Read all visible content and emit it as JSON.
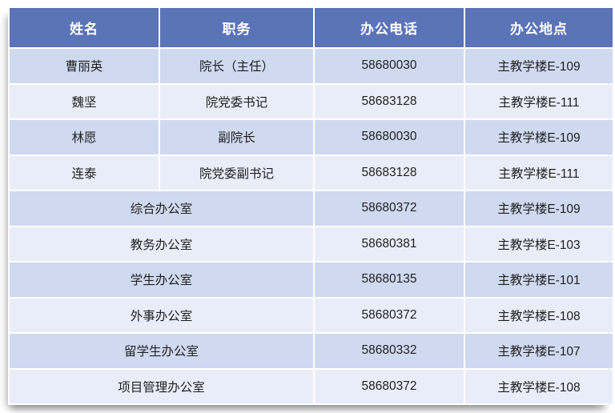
{
  "table": {
    "headers": [
      "姓名",
      "职务",
      "办公电话",
      "办公地点"
    ],
    "rows": [
      {
        "name": "曹丽英",
        "title": "院长（主任）",
        "phone": "58680030",
        "location": "主教学楼E-109"
      },
      {
        "name": "魏坚",
        "title": "院党委书记",
        "phone": "58683128",
        "location": "主教学楼E-111"
      },
      {
        "name": "林愿",
        "title": "副院长",
        "phone": "58680030",
        "location": "主教学楼E-109"
      },
      {
        "name": "连泰",
        "title": "院党委副书记",
        "phone": "58683128",
        "location": "主教学楼E-111"
      },
      {
        "office": "综合办公室",
        "phone": "58680372",
        "location": "主教学楼E-109"
      },
      {
        "office": "教务办公室",
        "phone": "58680381",
        "location": "主教学楼E-103"
      },
      {
        "office": "学生办公室",
        "phone": "58680135",
        "location": "主教学楼E-101"
      },
      {
        "office": "外事办公室",
        "phone": "58680372",
        "location": "主教学楼E-108"
      },
      {
        "office": "留学生办公室",
        "phone": "58680332",
        "location": "主教学楼E-107"
      },
      {
        "office": "项目管理办公室",
        "phone": "58680372",
        "location": "主教学楼E-108"
      }
    ],
    "colors": {
      "header_bg": "#5B73B7",
      "header_text": "#FFFFFF",
      "row_stripe_dark": "#CFD9F0",
      "row_stripe_light": "#E9EDF8",
      "cell_text": "#1F1F1F"
    }
  }
}
